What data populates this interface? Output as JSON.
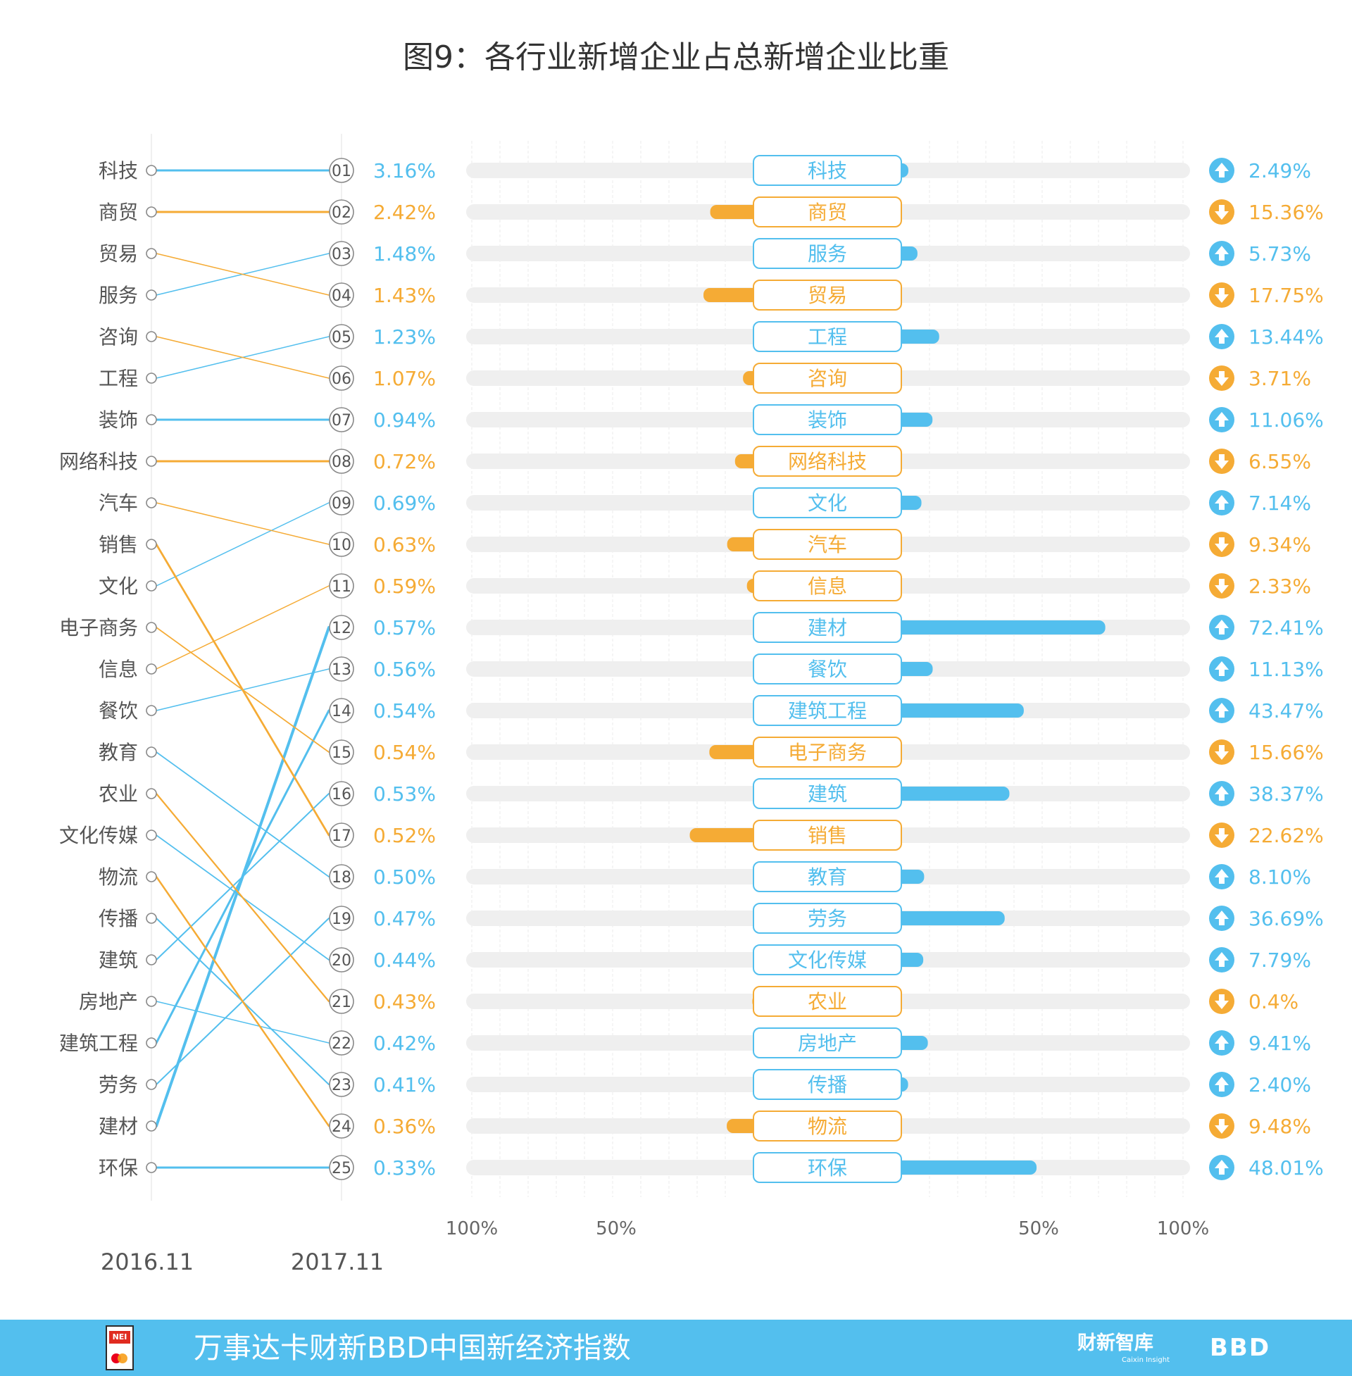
{
  "colors": {
    "blue": "#53bfee",
    "orange": "#f5ab35",
    "track": "#efefef",
    "grid": "#f2f2f2",
    "text_gray": "#555555",
    "title": "#333333"
  },
  "chart_data": {
    "type": "bar",
    "title": "图9：各行业新增企业占总新增企业比重",
    "period_start": "2016.11",
    "period_end": "2017.11",
    "left_ranking_2016": [
      "科技",
      "商贸",
      "贸易",
      "服务",
      "咨询",
      "工程",
      "装饰",
      "网络科技",
      "汽车",
      "销售",
      "文化",
      "电子商务",
      "信息",
      "餐饮",
      "教育",
      "农业",
      "文化传媒",
      "物流",
      "传播",
      "建筑",
      "房地产",
      "建筑工程",
      "劳务",
      "建材",
      "环保"
    ],
    "industries": [
      {
        "rank": "01",
        "name": "科技",
        "share": "3.16%",
        "change": 2.49,
        "change_label": "2.49%",
        "direction": "up"
      },
      {
        "rank": "02",
        "name": "商贸",
        "share": "2.42%",
        "change": -15.36,
        "change_label": "15.36%",
        "direction": "down"
      },
      {
        "rank": "03",
        "name": "服务",
        "share": "1.48%",
        "change": 5.73,
        "change_label": "5.73%",
        "direction": "up"
      },
      {
        "rank": "04",
        "name": "贸易",
        "share": "1.43%",
        "change": -17.75,
        "change_label": "17.75%",
        "direction": "down"
      },
      {
        "rank": "05",
        "name": "工程",
        "share": "1.23%",
        "change": 13.44,
        "change_label": "13.44%",
        "direction": "up"
      },
      {
        "rank": "06",
        "name": "咨询",
        "share": "1.07%",
        "change": -3.71,
        "change_label": "3.71%",
        "direction": "down"
      },
      {
        "rank": "07",
        "name": "装饰",
        "share": "0.94%",
        "change": 11.06,
        "change_label": "11.06%",
        "direction": "up"
      },
      {
        "rank": "08",
        "name": "网络科技",
        "share": "0.72%",
        "change": -6.55,
        "change_label": "6.55%",
        "direction": "down"
      },
      {
        "rank": "09",
        "name": "文化",
        "share": "0.69%",
        "change": 7.14,
        "change_label": "7.14%",
        "direction": "up"
      },
      {
        "rank": "10",
        "name": "汽车",
        "share": "0.63%",
        "change": -9.34,
        "change_label": "9.34%",
        "direction": "down"
      },
      {
        "rank": "11",
        "name": "信息",
        "share": "0.59%",
        "change": -2.33,
        "change_label": "2.33%",
        "direction": "down"
      },
      {
        "rank": "12",
        "name": "建材",
        "share": "0.57%",
        "change": 72.41,
        "change_label": "72.41%",
        "direction": "up"
      },
      {
        "rank": "13",
        "name": "餐饮",
        "share": "0.56%",
        "change": 11.13,
        "change_label": "11.13%",
        "direction": "up"
      },
      {
        "rank": "14",
        "name": "建筑工程",
        "share": "0.54%",
        "change": 43.47,
        "change_label": "43.47%",
        "direction": "up"
      },
      {
        "rank": "15",
        "name": "电子商务",
        "share": "0.54%",
        "change": -15.66,
        "change_label": "15.66%",
        "direction": "down"
      },
      {
        "rank": "16",
        "name": "建筑",
        "share": "0.53%",
        "change": 38.37,
        "change_label": "38.37%",
        "direction": "up"
      },
      {
        "rank": "17",
        "name": "销售",
        "share": "0.52%",
        "change": -22.62,
        "change_label": "22.62%",
        "direction": "down"
      },
      {
        "rank": "18",
        "name": "教育",
        "share": "0.50%",
        "change": 8.1,
        "change_label": "8.10%",
        "direction": "up"
      },
      {
        "rank": "19",
        "name": "劳务",
        "share": "0.47%",
        "change": 36.69,
        "change_label": "36.69%",
        "direction": "up"
      },
      {
        "rank": "20",
        "name": "文化传媒",
        "share": "0.44%",
        "change": 7.79,
        "change_label": "7.79%",
        "direction": "up"
      },
      {
        "rank": "21",
        "name": "农业",
        "share": "0.43%",
        "change": -0.4,
        "change_label": "0.4%",
        "direction": "down"
      },
      {
        "rank": "22",
        "name": "房地产",
        "share": "0.42%",
        "change": 9.41,
        "change_label": "9.41%",
        "direction": "up"
      },
      {
        "rank": "23",
        "name": "传播",
        "share": "0.41%",
        "change": 2.4,
        "change_label": "2.40%",
        "direction": "up"
      },
      {
        "rank": "24",
        "name": "物流",
        "share": "0.36%",
        "change": -9.48,
        "change_label": "9.48%",
        "direction": "down"
      },
      {
        "rank": "25",
        "name": "环保",
        "share": "0.33%",
        "change": 48.01,
        "change_label": "48.01%",
        "direction": "up"
      }
    ],
    "axis_labels": [
      "100%",
      "50%",
      "50%",
      "100%"
    ],
    "xlim": [
      -100,
      100
    ]
  },
  "footer": {
    "logo_text": "NEI",
    "text": "万事达卡财新BBD中国新经济指数",
    "brand_caixin": "财新智库",
    "brand_caixin_sub": "Caixin Insight",
    "brand_bbd": "BBD"
  }
}
